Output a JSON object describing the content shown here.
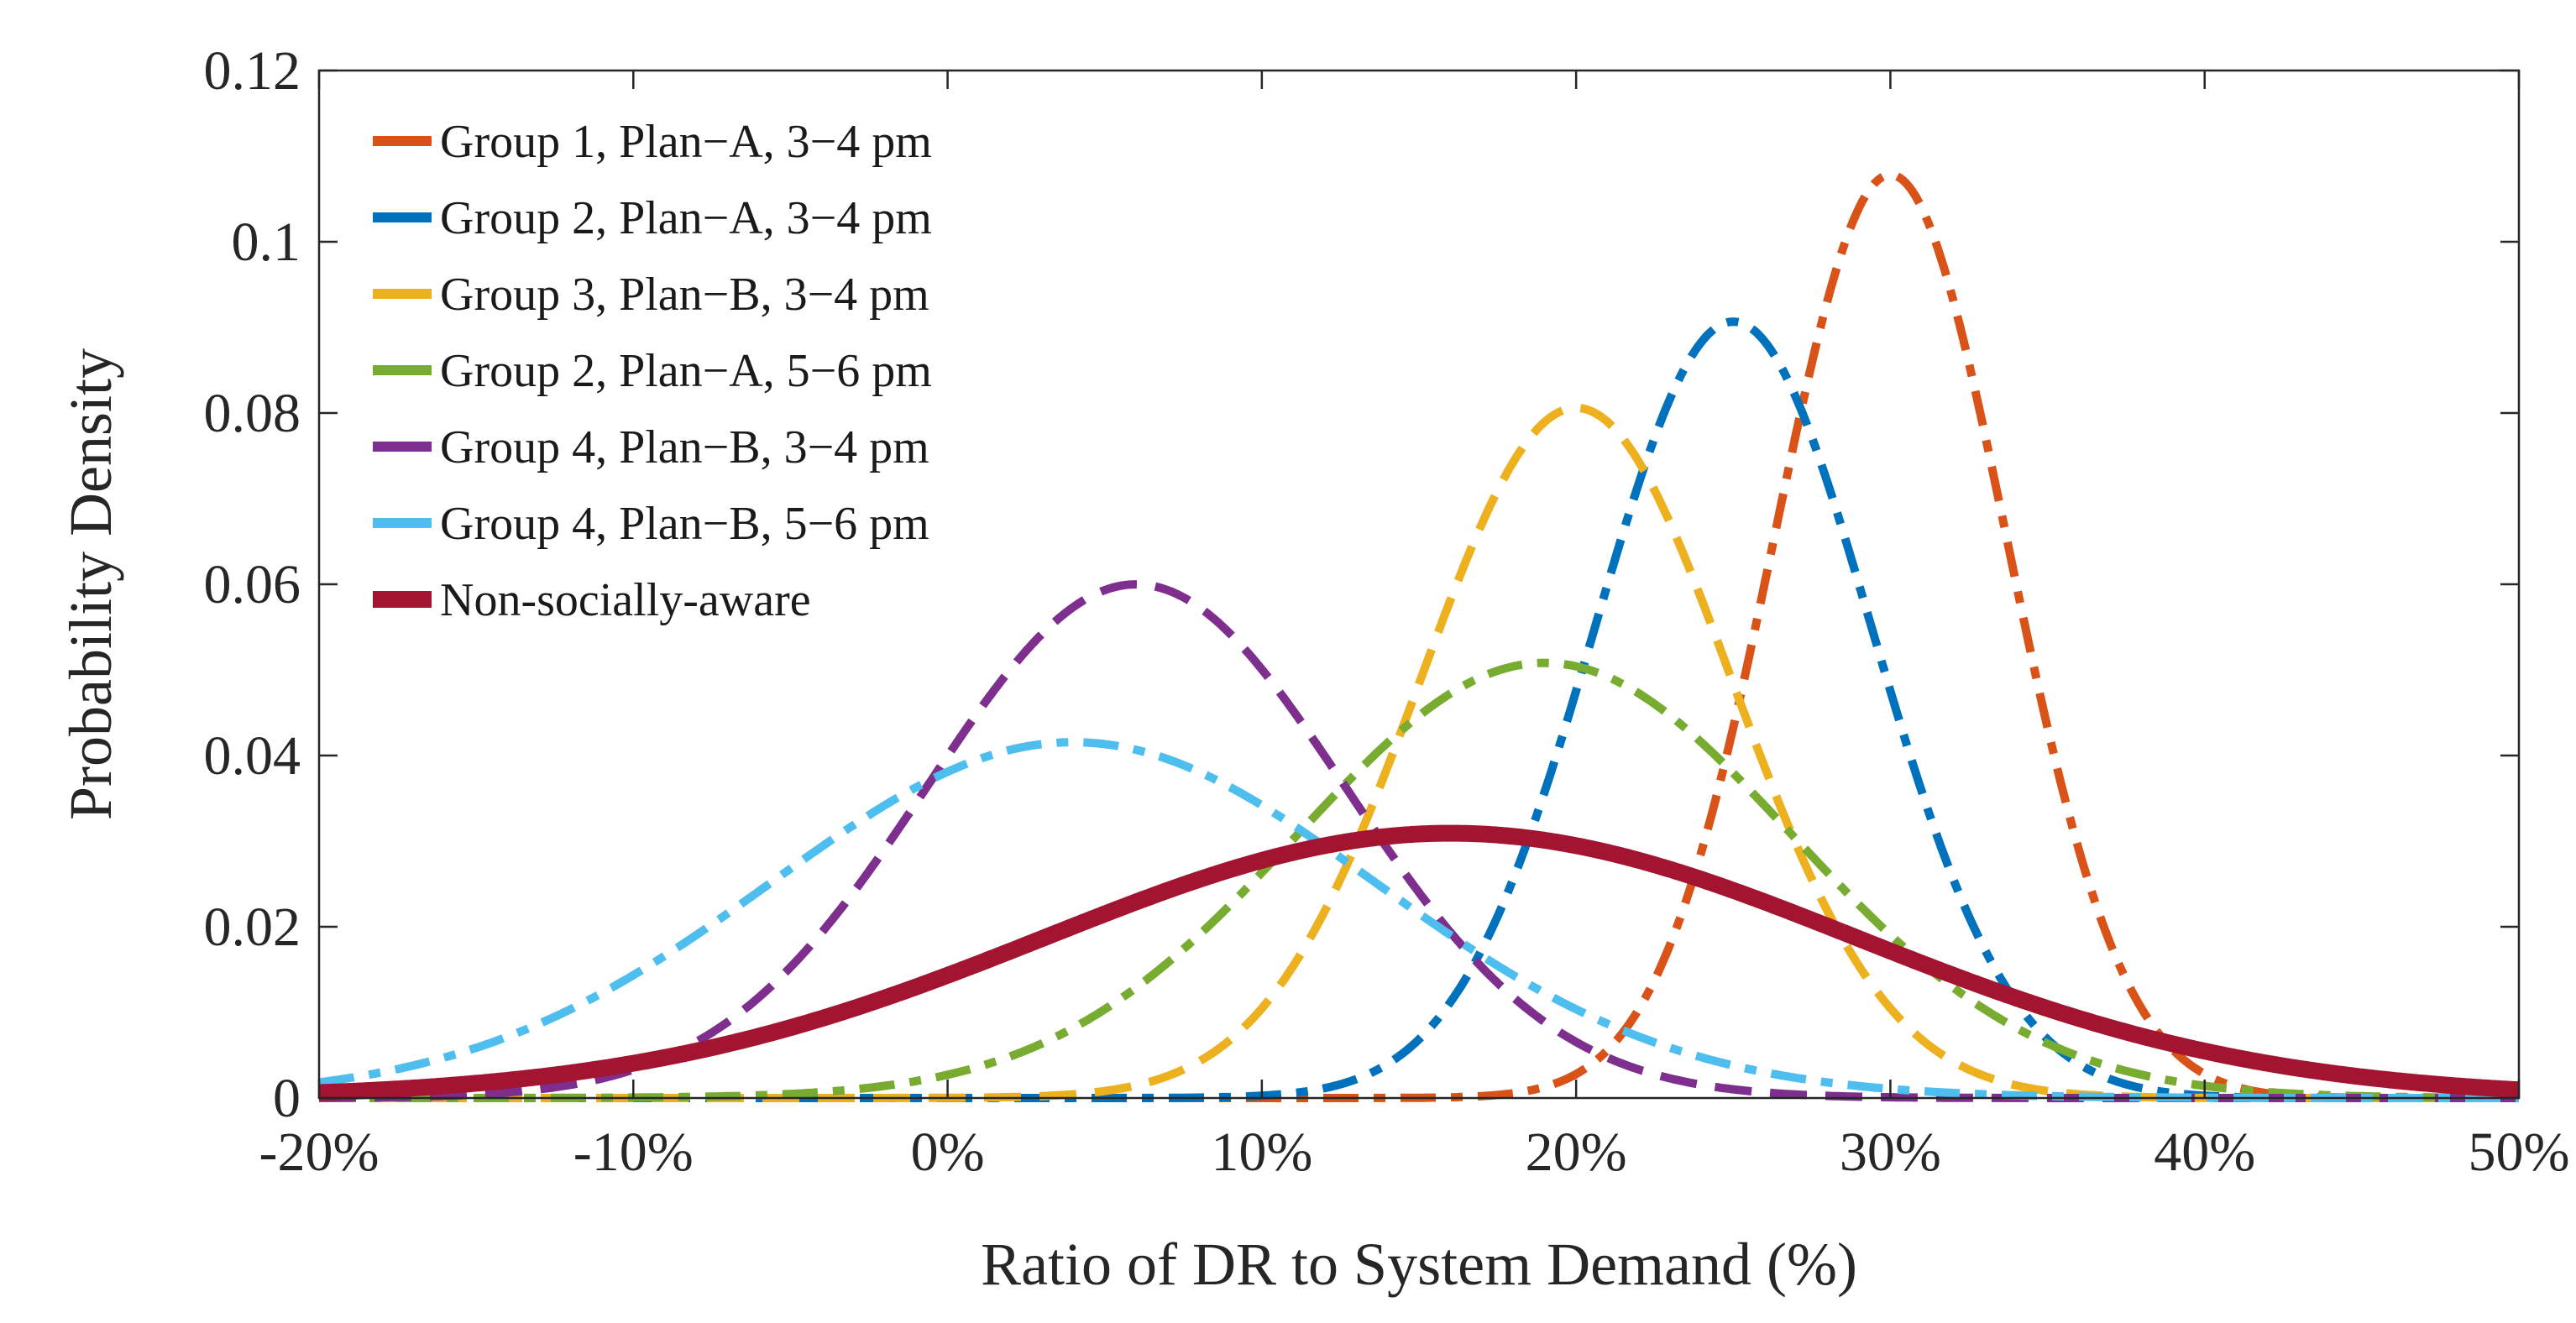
{
  "chart_data": {
    "type": "line",
    "title": "",
    "xlabel": "Ratio of DR to System Demand (%)",
    "ylabel": "Probability Density",
    "xlim": [
      -20,
      50
    ],
    "ylim": [
      0,
      0.12
    ],
    "x_ticks": [
      {
        "value": -20,
        "label": "-20%"
      },
      {
        "value": -10,
        "label": "-10%"
      },
      {
        "value": 0,
        "label": "0%"
      },
      {
        "value": 10,
        "label": "10%"
      },
      {
        "value": 20,
        "label": "20%"
      },
      {
        "value": 30,
        "label": "30%"
      },
      {
        "value": 40,
        "label": "40%"
      },
      {
        "value": 50,
        "label": "50%"
      }
    ],
    "y_ticks": [
      {
        "value": 0,
        "label": "0"
      },
      {
        "value": 0.02,
        "label": "0.02"
      },
      {
        "value": 0.04,
        "label": "0.04"
      },
      {
        "value": 0.06,
        "label": "0.06"
      },
      {
        "value": 0.08,
        "label": "0.08"
      },
      {
        "value": 0.1,
        "label": "0.1"
      },
      {
        "value": 0.12,
        "label": "0.12"
      }
    ],
    "legend_position": "top-left",
    "series": [
      {
        "name": "Group 1, Plan−A, 3−4 pm",
        "color": "#D95319",
        "style": "dashdot",
        "distribution": "normal",
        "mean": 30,
        "std": 3.7
      },
      {
        "name": "Group 2, Plan−A, 3−4 pm",
        "color": "#0072BD",
        "style": "dashdot",
        "distribution": "normal",
        "mean": 25,
        "std": 4.4
      },
      {
        "name": "Group 3, Plan−B, 3−4 pm",
        "color": "#EDB120",
        "style": "dashed",
        "distribution": "normal",
        "mean": 20,
        "std": 4.95
      },
      {
        "name": "Group 2, Plan−A, 5−6 pm",
        "color": "#77AC30",
        "style": "dashdot",
        "distribution": "normal",
        "mean": 19,
        "std": 7.85
      },
      {
        "name": "Group 4, Plan−B, 3−4 pm",
        "color": "#7E2F8E",
        "style": "dashed",
        "distribution": "normal",
        "mean": 6,
        "std": 6.65
      },
      {
        "name": "Group 4, Plan−B, 5−6 pm",
        "color": "#4DBEEE",
        "style": "dashdot",
        "distribution": "normal",
        "mean": 4,
        "std": 9.6
      },
      {
        "name": "Non-socially-aware",
        "color": "#A2142F",
        "style": "solid",
        "distribution": "normal",
        "mean": 16,
        "std": 12.9
      }
    ]
  }
}
